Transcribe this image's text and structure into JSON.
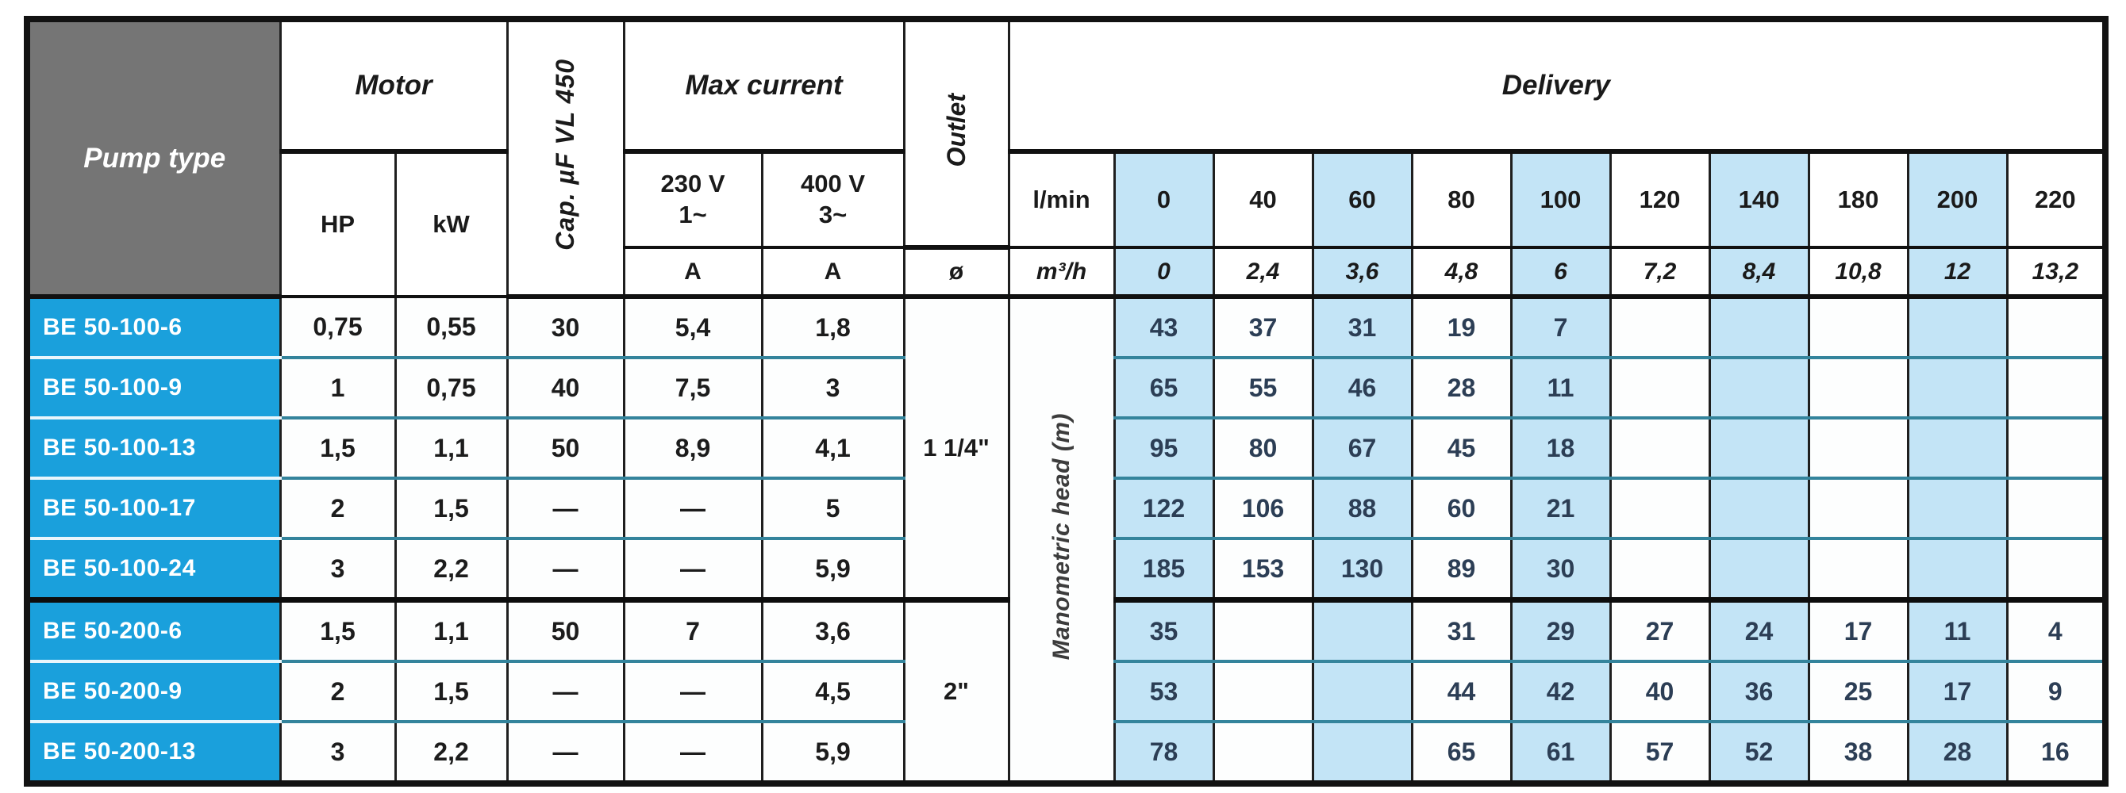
{
  "colors": {
    "pump_name_bg": "#1AA0DC",
    "corner_header_bg": "#757575",
    "shaded_column_bg": "#C3E4F6",
    "row_separator": "#34849C",
    "head_value_text": "#2C3E55",
    "border": "#121212"
  },
  "header": {
    "pump_type": "Pump type",
    "motor": "Motor",
    "capacitor": "Cap. µF VL 450",
    "max_current": "Max current",
    "outlet": "Outlet",
    "delivery": "Delivery",
    "hp": "HP",
    "kw": "kW",
    "v230": "230 V",
    "phase1": "1~",
    "v400": "400 V",
    "phase3": "3~",
    "amp1": "A",
    "amp2": "A",
    "diameter": "ø",
    "lmin": "l/min",
    "m3h": "m³/h",
    "manometric": "Manometric head (m)"
  },
  "flow_lmin": [
    "0",
    "40",
    "60",
    "80",
    "100",
    "120",
    "140",
    "180",
    "200",
    "220"
  ],
  "flow_m3h": [
    "0",
    "2,4",
    "3,6",
    "4,8",
    "6",
    "7,2",
    "8,4",
    "10,8",
    "12",
    "13,2"
  ],
  "shaded_cols": [
    0,
    2,
    4,
    6,
    8
  ],
  "outlets": [
    {
      "label": "1 1/4\"",
      "rows": 5
    },
    {
      "label": "2\"",
      "rows": 3
    }
  ],
  "rows": [
    {
      "name": "BE 50-100-6",
      "hp": "0,75",
      "kw": "0,55",
      "cap": "30",
      "a230": "5,4",
      "a400": "1,8",
      "heads": [
        "43",
        "37",
        "31",
        "19",
        "7",
        "",
        "",
        "",
        "",
        ""
      ]
    },
    {
      "name": "BE 50-100-9",
      "hp": "1",
      "kw": "0,75",
      "cap": "40",
      "a230": "7,5",
      "a400": "3",
      "heads": [
        "65",
        "55",
        "46",
        "28",
        "11",
        "",
        "",
        "",
        "",
        ""
      ]
    },
    {
      "name": "BE 50-100-13",
      "hp": "1,5",
      "kw": "1,1",
      "cap": "50",
      "a230": "8,9",
      "a400": "4,1",
      "heads": [
        "95",
        "80",
        "67",
        "45",
        "18",
        "",
        "",
        "",
        "",
        ""
      ]
    },
    {
      "name": "BE 50-100-17",
      "hp": "2",
      "kw": "1,5",
      "cap": "—",
      "a230": "—",
      "a400": "5",
      "heads": [
        "122",
        "106",
        "88",
        "60",
        "21",
        "",
        "",
        "",
        "",
        ""
      ]
    },
    {
      "name": "BE 50-100-24",
      "hp": "3",
      "kw": "2,2",
      "cap": "—",
      "a230": "—",
      "a400": "5,9",
      "heads": [
        "185",
        "153",
        "130",
        "89",
        "30",
        "",
        "",
        "",
        "",
        ""
      ]
    },
    {
      "name": "BE 50-200-6",
      "hp": "1,5",
      "kw": "1,1",
      "cap": "50",
      "a230": "7",
      "a400": "3,6",
      "heads": [
        "35",
        "",
        "",
        "31",
        "29",
        "27",
        "24",
        "17",
        "11",
        "4"
      ]
    },
    {
      "name": "BE 50-200-9",
      "hp": "2",
      "kw": "1,5",
      "cap": "—",
      "a230": "—",
      "a400": "4,5",
      "heads": [
        "53",
        "",
        "",
        "44",
        "42",
        "40",
        "36",
        "25",
        "17",
        "9"
      ]
    },
    {
      "name": "BE 50-200-13",
      "hp": "3",
      "kw": "2,2",
      "cap": "—",
      "a230": "—",
      "a400": "5,9",
      "heads": [
        "78",
        "",
        "",
        "65",
        "61",
        "57",
        "52",
        "38",
        "28",
        "16"
      ]
    }
  ],
  "chart_data": {
    "type": "table",
    "title": "Pump specification and delivery table",
    "x_lmin": [
      0,
      40,
      60,
      80,
      100,
      120,
      140,
      180,
      200,
      220
    ],
    "x_m3h": [
      0,
      2.4,
      3.6,
      4.8,
      6,
      7.2,
      8.4,
      10.8,
      12,
      13.2
    ],
    "ylabel": "Manometric head (m)",
    "series": [
      {
        "name": "BE 50-100-6",
        "values": [
          43,
          37,
          31,
          19,
          7,
          null,
          null,
          null,
          null,
          null
        ]
      },
      {
        "name": "BE 50-100-9",
        "values": [
          65,
          55,
          46,
          28,
          11,
          null,
          null,
          null,
          null,
          null
        ]
      },
      {
        "name": "BE 50-100-13",
        "values": [
          95,
          80,
          67,
          45,
          18,
          null,
          null,
          null,
          null,
          null
        ]
      },
      {
        "name": "BE 50-100-17",
        "values": [
          122,
          106,
          88,
          60,
          21,
          null,
          null,
          null,
          null,
          null
        ]
      },
      {
        "name": "BE 50-100-24",
        "values": [
          185,
          153,
          130,
          89,
          30,
          null,
          null,
          null,
          null,
          null
        ]
      },
      {
        "name": "BE 50-200-6",
        "values": [
          35,
          null,
          null,
          31,
          29,
          27,
          24,
          17,
          11,
          4
        ]
      },
      {
        "name": "BE 50-200-9",
        "values": [
          53,
          null,
          null,
          44,
          42,
          40,
          36,
          25,
          17,
          9
        ]
      },
      {
        "name": "BE 50-200-13",
        "values": [
          78,
          null,
          null,
          65,
          61,
          57,
          52,
          38,
          28,
          16
        ]
      }
    ]
  }
}
